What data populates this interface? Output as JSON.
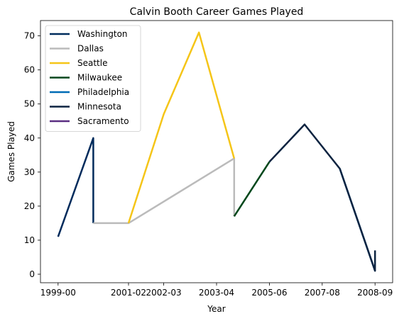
{
  "chart_data": {
    "type": "line",
    "title": "Calvin Booth Career Games Played",
    "xlabel": "Year",
    "ylabel": "Games Played",
    "x_ticks": [
      "1999-00",
      "2001-02",
      "2002-03",
      "2003-04",
      "2005-06",
      "2007-08",
      "2008-09"
    ],
    "y_ticks": [
      0,
      10,
      20,
      30,
      40,
      50,
      60,
      70
    ],
    "xlim": [
      -0.5,
      9.5
    ],
    "ylim": [
      -2.5,
      74.5
    ],
    "grid": false,
    "legend_position": "top-left",
    "series": [
      {
        "name": "Washington",
        "color": "#002B5C",
        "points": [
          [
            0,
            11
          ],
          [
            1,
            40
          ],
          [
            1,
            15
          ]
        ]
      },
      {
        "name": "Dallas",
        "color": "#BBBBBB",
        "points": [
          [
            1,
            15
          ],
          [
            2,
            15
          ],
          [
            5,
            34
          ],
          [
            5,
            17
          ]
        ]
      },
      {
        "name": "Seattle",
        "color": "#F5C518",
        "points": [
          [
            2,
            15
          ],
          [
            3,
            47
          ],
          [
            4,
            71
          ],
          [
            5,
            34
          ]
        ]
      },
      {
        "name": "Milwaukee",
        "color": "#00471B",
        "points": [
          [
            5,
            17
          ],
          [
            6,
            33
          ]
        ]
      },
      {
        "name": "Philadelphia",
        "color": "#006BB6",
        "points": [
          [
            8,
            31
          ],
          [
            9,
            1
          ]
        ]
      },
      {
        "name": "Minnesota",
        "color": "#0C2340",
        "points": [
          [
            6,
            33
          ],
          [
            7,
            44
          ],
          [
            8,
            31
          ],
          [
            9,
            1
          ],
          [
            9,
            7
          ]
        ]
      },
      {
        "name": "Sacramento",
        "color": "#5A2D81",
        "points": []
      }
    ]
  }
}
